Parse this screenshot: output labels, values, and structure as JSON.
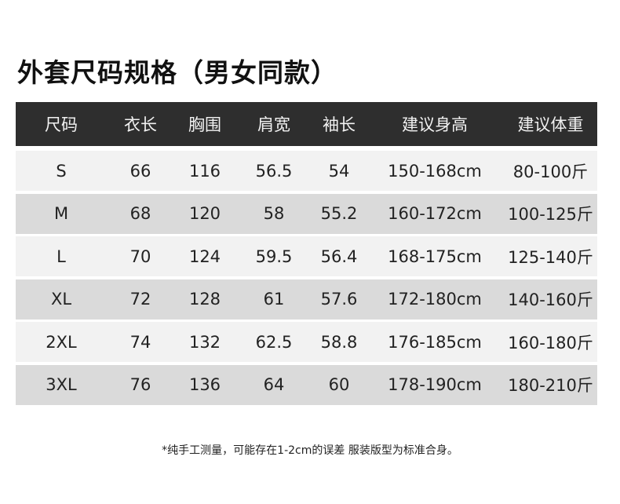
{
  "title": "外套尺码规格（男女同款）",
  "table": {
    "headers": [
      "尺码",
      "衣长",
      "胸围",
      "肩宽",
      "袖长",
      "建议身高",
      "建议体重"
    ],
    "rows": [
      [
        "S",
        "66",
        "116",
        "56.5",
        "54",
        "150-168cm",
        "80-100斤"
      ],
      [
        "M",
        "68",
        "120",
        "58",
        "55.2",
        "160-172cm",
        "100-125斤"
      ],
      [
        "L",
        "70",
        "124",
        "59.5",
        "56.4",
        "168-175cm",
        "125-140斤"
      ],
      [
        "XL",
        "72",
        "128",
        "61",
        "57.6",
        "172-180cm",
        "140-160斤"
      ],
      [
        "2XL",
        "74",
        "132",
        "62.5",
        "58.8",
        "176-185cm",
        "160-180斤"
      ],
      [
        "3XL",
        "76",
        "136",
        "64",
        "60",
        "178-190cm",
        "180-210斤"
      ]
    ]
  },
  "note": "*纯手工测量，可能存在1-2cm的误差 服装版型为标准合身。",
  "colors": {
    "header_bg": "#2e2e2e",
    "row_light": "#f2f2f2",
    "row_dark": "#dadada"
  }
}
